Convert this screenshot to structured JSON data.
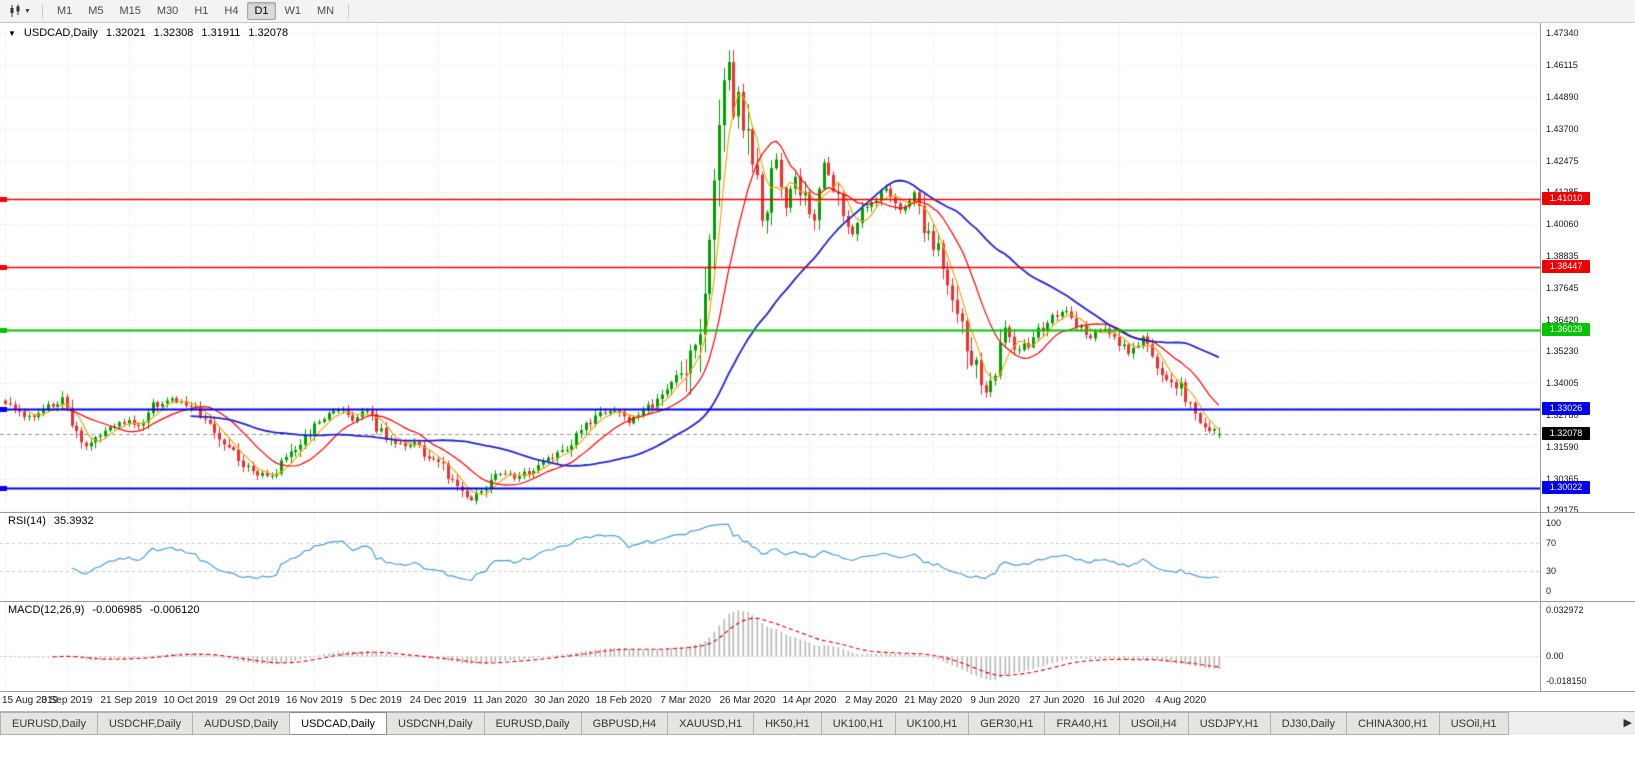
{
  "toolbar": {
    "timeframes": [
      "M1",
      "M5",
      "M15",
      "M30",
      "H1",
      "H4",
      "D1",
      "W1",
      "MN"
    ],
    "active_timeframe": "D1"
  },
  "chart": {
    "symbol_label": "USDCAD,Daily",
    "quote": {
      "open": "1.32021",
      "high": "1.32308",
      "low": "1.31911",
      "close": "1.32078"
    },
    "current_price": "1.32078",
    "price_axis_labels": [
      "1.47340",
      "1.46115",
      "1.44890",
      "1.43700",
      "1.42475",
      "1.41285",
      "1.40060",
      "1.38835",
      "1.37645",
      "1.36420",
      "1.35230",
      "1.34005",
      "1.32780",
      "1.31590",
      "1.30365",
      "1.29175"
    ],
    "hlines": [
      {
        "price": 1.4101,
        "label": "1.41010",
        "color": "#ee0000",
        "width": 1.4
      },
      {
        "price": 1.38447,
        "label": "1.38447",
        "color": "#ee0000",
        "width": 1.4
      },
      {
        "price": 1.36029,
        "label": "1.36029",
        "color": "#00c400",
        "width": 2
      },
      {
        "price": 1.33026,
        "label": "1.33026",
        "color": "#0000ee",
        "width": 2
      },
      {
        "price": 1.30022,
        "label": "1.30022",
        "color": "#0000ee",
        "width": 2
      }
    ],
    "date_axis_labels": [
      "15 Aug 2019",
      "3 Sep 2019",
      "21 Sep 2019",
      "10 Oct 2019",
      "29 Oct 2019",
      "16 Nov 2019",
      "5 Dec 2019",
      "24 Dec 2019",
      "11 Jan 2020",
      "30 Jan 2020",
      "18 Feb 2020",
      "7 Mar 2020",
      "26 Mar 2020",
      "14 Apr 2020",
      "2 May 2020",
      "21 May 2020",
      "9 Jun 2020",
      "27 Jun 2020",
      "16 Jul 2020",
      "4 Aug 2020"
    ]
  },
  "rsi": {
    "title": "RSI(14)",
    "value": "35.3932",
    "period": 14,
    "axis_labels": [
      "100",
      "70",
      "30",
      "0"
    ],
    "levels": [
      70,
      30
    ],
    "line_color": "#4e9fd4"
  },
  "macd": {
    "title": "MACD(12,26,9)",
    "value_macd": "-0.006985",
    "value_signal": "-0.006120",
    "fast": 12,
    "slow": 26,
    "signal": 9,
    "axis_labels": [
      "0.032972",
      "0.00",
      "-0.018150"
    ],
    "scale_max": 0.032972,
    "scale_min": -0.01815,
    "histogram_color": "#b6b6b6",
    "signal_color": "#e00000"
  },
  "chart_data": {
    "type": "candlestick",
    "symbol": "USDCAD",
    "timeframe": "Daily",
    "x_range": {
      "start": "15 Aug 2019",
      "end": "14 Aug 2020"
    },
    "y_range": {
      "min": 1.29175,
      "max": 1.4734
    },
    "candle_count": 256,
    "last_candle": {
      "open": 1.32021,
      "high": 1.32308,
      "low": 1.31911,
      "close": 1.32078
    },
    "peak_high": 1.4668,
    "trough_low": 1.2952,
    "close_anchors": [
      [
        0,
        1.332
      ],
      [
        4,
        1.3268
      ],
      [
        8,
        1.3302
      ],
      [
        12,
        1.3332
      ],
      [
        14,
        1.3238
      ],
      [
        17,
        1.3168
      ],
      [
        20,
        1.3215
      ],
      [
        24,
        1.3262
      ],
      [
        28,
        1.324
      ],
      [
        31,
        1.3312
      ],
      [
        34,
        1.3338
      ],
      [
        37,
        1.332
      ],
      [
        40,
        1.3298
      ],
      [
        44,
        1.3218
      ],
      [
        48,
        1.3128
      ],
      [
        52,
        1.3066
      ],
      [
        56,
        1.3042
      ],
      [
        58,
        1.3092
      ],
      [
        62,
        1.3182
      ],
      [
        66,
        1.3262
      ],
      [
        70,
        1.3302
      ],
      [
        73,
        1.3268
      ],
      [
        76,
        1.3292
      ],
      [
        79,
        1.3208
      ],
      [
        82,
        1.3162
      ],
      [
        86,
        1.3172
      ],
      [
        89,
        1.3118
      ],
      [
        92,
        1.3078
      ],
      [
        95,
        1.2992
      ],
      [
        98,
        1.2962
      ],
      [
        101,
        1.3002
      ],
      [
        104,
        1.3062
      ],
      [
        108,
        1.3042
      ],
      [
        112,
        1.3082
      ],
      [
        116,
        1.3122
      ],
      [
        120,
        1.3202
      ],
      [
        124,
        1.3272
      ],
      [
        128,
        1.3302
      ],
      [
        131,
        1.3258
      ],
      [
        134,
        1.3292
      ],
      [
        137,
        1.3332
      ],
      [
        140,
        1.3402
      ],
      [
        143,
        1.3432
      ],
      [
        145,
        1.3602
      ],
      [
        147,
        1.3722
      ],
      [
        148,
        1.3902
      ],
      [
        149,
        1.4102
      ],
      [
        150,
        1.4352
      ],
      [
        151,
        1.4502
      ],
      [
        152,
        1.4622
      ],
      [
        153,
        1.4452
      ],
      [
        154,
        1.4482
      ],
      [
        155,
        1.4352
      ],
      [
        156,
        1.4422
      ],
      [
        157,
        1.4282
      ],
      [
        158,
        1.4152
      ],
      [
        159,
        1.4002
      ],
      [
        160,
        1.4082
      ],
      [
        161,
        1.4202
      ],
      [
        162,
        1.4262
      ],
      [
        163,
        1.4152
      ],
      [
        164,
        1.4062
      ],
      [
        166,
        1.4182
      ],
      [
        168,
        1.4092
      ],
      [
        170,
        1.4022
      ],
      [
        172,
        1.4242
      ],
      [
        174,
        1.4162
      ],
      [
        176,
        1.4032
      ],
      [
        178,
        1.3962
      ],
      [
        180,
        1.4062
      ],
      [
        182,
        1.4092
      ],
      [
        185,
        1.4142
      ],
      [
        188,
        1.4062
      ],
      [
        191,
        1.4122
      ],
      [
        193,
        1.3982
      ],
      [
        196,
        1.3902
      ],
      [
        199,
        1.3762
      ],
      [
        202,
        1.3572
      ],
      [
        204,
        1.3462
      ],
      [
        206,
        1.3382
      ],
      [
        208,
        1.3432
      ],
      [
        210,
        1.3622
      ],
      [
        212,
        1.3542
      ],
      [
        215,
        1.3552
      ],
      [
        218,
        1.3622
      ],
      [
        221,
        1.3662
      ],
      [
        223,
        1.3682
      ],
      [
        225,
        1.3622
      ],
      [
        228,
        1.3582
      ],
      [
        231,
        1.3612
      ],
      [
        234,
        1.3562
      ],
      [
        236,
        1.3512
      ],
      [
        239,
        1.3572
      ],
      [
        242,
        1.3452
      ],
      [
        245,
        1.3412
      ],
      [
        247,
        1.3382
      ],
      [
        249,
        1.3302
      ],
      [
        251,
        1.3252
      ],
      [
        253,
        1.3222
      ],
      [
        255,
        1.32078
      ]
    ],
    "wick_overrides": [
      {
        "index": 152,
        "high": 1.4668
      },
      {
        "index": 98,
        "low": 1.2952
      }
    ],
    "up_color": "#00a000",
    "down_color": "#f03030",
    "moving_averages": [
      {
        "name": "fast",
        "period": 5,
        "color": "#f5a100",
        "width": 1.1
      },
      {
        "name": "medium",
        "period": 13,
        "color": "#ff0000",
        "width": 1.2
      },
      {
        "name": "slow",
        "period": 40,
        "color": "#2222cc",
        "width": 1.8
      }
    ]
  },
  "tabs": {
    "items": [
      "EURUSD,Daily",
      "USDCHF,Daily",
      "AUDUSD,Daily",
      "USDCAD,Daily",
      "USDCNH,Daily",
      "EURUSD,Daily",
      "GBPUSD,H4",
      "XAUUSD,H1",
      "HK50,H1",
      "UK100,H1",
      "UK100,H1",
      "GER30,H1",
      "FRA40,H1",
      "USOil,H4",
      "USDJPY,H1",
      "DJ30,Daily",
      "CHINA300,H1",
      "USOil,H1"
    ],
    "active_index": 3,
    "scroll_right_icon": "▶"
  }
}
